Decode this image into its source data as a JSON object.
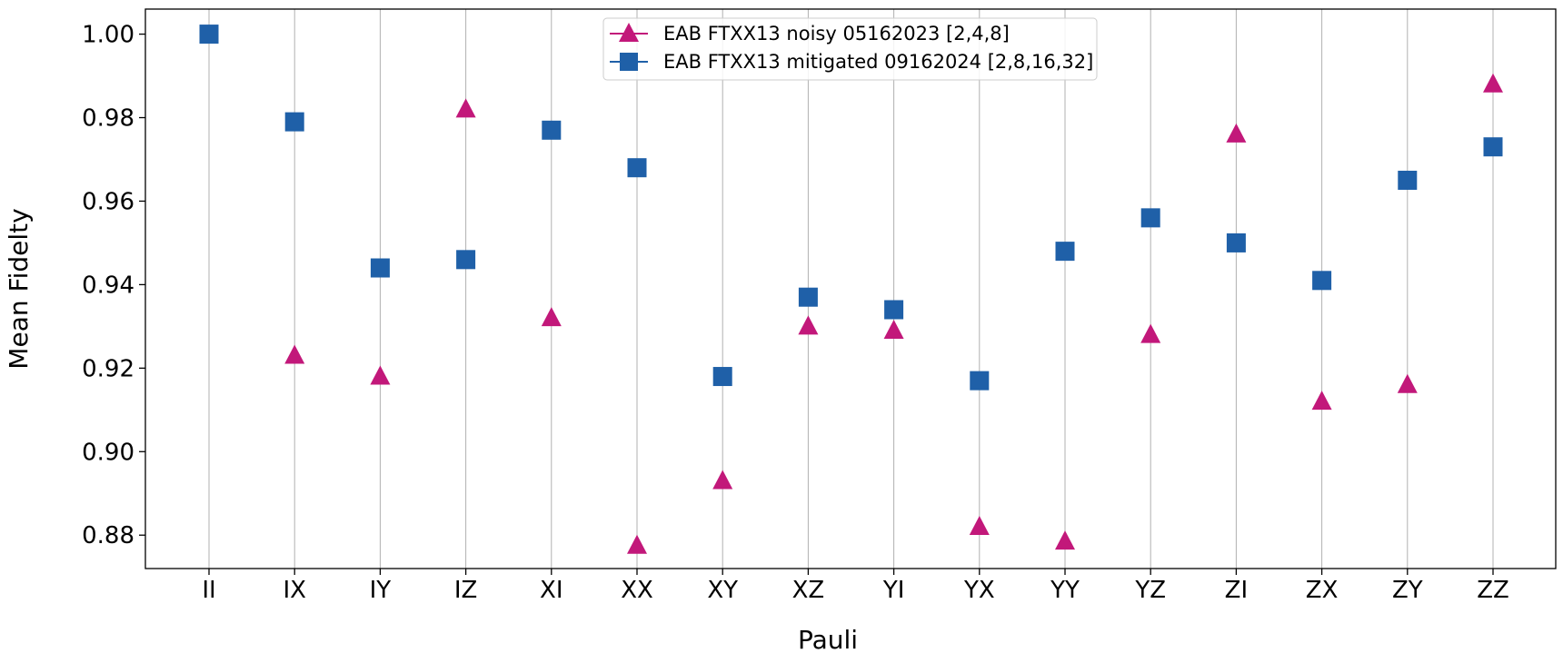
{
  "chart_data": {
    "type": "scatter",
    "title": "",
    "xlabel": "Pauli",
    "ylabel": "Mean Fidelty",
    "categories": [
      "II",
      "IX",
      "IY",
      "IZ",
      "XI",
      "XX",
      "XY",
      "XZ",
      "YI",
      "YX",
      "YY",
      "YZ",
      "ZI",
      "ZX",
      "ZY",
      "ZZ"
    ],
    "ylim": [
      0.872,
      1.006
    ],
    "yticks": [
      0.88,
      0.9,
      0.92,
      0.94,
      0.96,
      0.98,
      1.0
    ],
    "ytick_labels": [
      "0.88",
      "0.90",
      "0.92",
      "0.94",
      "0.96",
      "0.98",
      "1.00"
    ],
    "grid": "vertical",
    "legend_position": "top-center",
    "series": [
      {
        "name": "EAB FTXX13 noisy 05162023 [2,4,8]",
        "marker": "triangle",
        "color": "#c2187a",
        "values": [
          null,
          0.923,
          0.918,
          0.982,
          0.932,
          0.8775,
          0.893,
          0.93,
          0.929,
          0.882,
          0.8785,
          0.928,
          0.976,
          0.912,
          0.916,
          0.988
        ]
      },
      {
        "name": "EAB FTXX13 mitigated 09162024 [2,8,16,32]",
        "marker": "square",
        "color": "#1f60a8",
        "values": [
          1.0,
          0.979,
          0.944,
          0.946,
          0.977,
          0.968,
          0.918,
          0.937,
          0.934,
          0.917,
          0.948,
          0.956,
          0.95,
          0.941,
          0.965,
          0.973
        ]
      }
    ]
  }
}
